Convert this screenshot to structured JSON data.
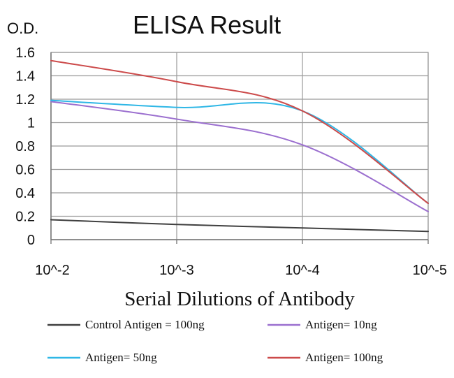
{
  "chart_data": {
    "type": "line",
    "title": "ELISA Result",
    "ylabel": "O.D.",
    "xlabel": "Serial Dilutions of Antibody",
    "categories": [
      "10^-2",
      "10^-3",
      "10^-4",
      "10^-5"
    ],
    "y_ticks": [
      "0",
      "0.2",
      "0.4",
      "0.6",
      "0.8",
      "1",
      "1.2",
      "1.4",
      "1.6"
    ],
    "ylim": [
      0,
      1.6
    ],
    "grid": true,
    "legend_position": "bottom",
    "series": [
      {
        "name": "Control Antigen = 100ng",
        "color": "#404040",
        "values": [
          0.17,
          0.13,
          0.1,
          0.07
        ]
      },
      {
        "name": "Antigen= 10ng",
        "color": "#9b6fcf",
        "values": [
          1.18,
          1.03,
          0.81,
          0.24
        ]
      },
      {
        "name": "Antigen= 50ng",
        "color": "#2fb7e6",
        "values": [
          1.19,
          1.13,
          1.1,
          0.31
        ]
      },
      {
        "name": "Antigen= 100ng",
        "color": "#cc4a4a",
        "values": [
          1.53,
          1.35,
          1.1,
          0.31
        ]
      }
    ]
  }
}
